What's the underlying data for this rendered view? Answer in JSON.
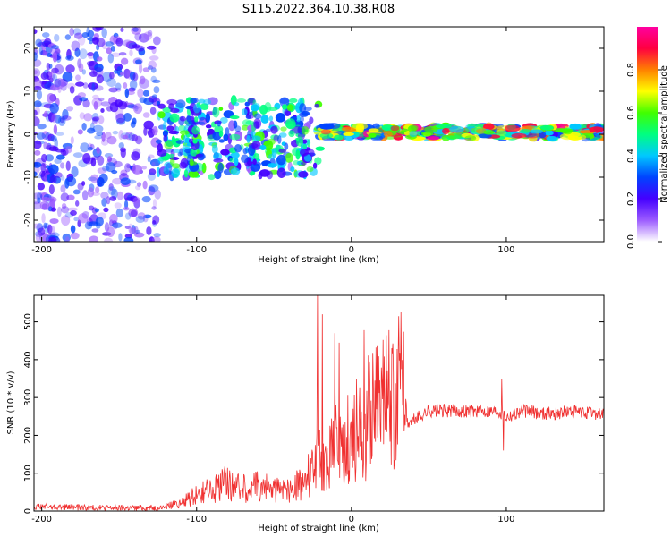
{
  "title": "S115.2022.364.10.38.R08",
  "chart_data": [
    {
      "type": "heatmap",
      "title": "S115.2022.364.10.38.R08",
      "xlabel": "Height of straight line (km)",
      "ylabel": "Frequency (Hz)",
      "xlim": [
        -205,
        163
      ],
      "ylim": [
        -25,
        25
      ],
      "xticks": [
        -200,
        -100,
        0,
        100
      ],
      "yticks": [
        -20,
        -10,
        0,
        10,
        20
      ],
      "colorbar": {
        "label": "Normalized spectral amplitude",
        "range": [
          0,
          1
        ],
        "ticks": [
          0.0,
          0.2,
          0.4,
          0.6,
          0.8
        ],
        "colormap": [
          "#ffffff",
          "#9c5cff",
          "#4400ff",
          "#0044ff",
          "#00c8ff",
          "#00ff80",
          "#40ff00",
          "#ffff00",
          "#ff8000",
          "#ff0040",
          "#ff00a0"
        ]
      },
      "description_regions": [
        {
          "x_range": [
            -205,
            -125
          ],
          "y_range": [
            -25,
            25
          ],
          "amplitude": 0.2
        },
        {
          "x_range": [
            -125,
            -20
          ],
          "y_range": [
            -10,
            8
          ],
          "amplitude": 0.35
        },
        {
          "x_range": [
            -20,
            163
          ],
          "y_range": [
            -1,
            2
          ],
          "amplitude": 0.55
        }
      ]
    },
    {
      "type": "line",
      "xlabel": "Height of straight line (km)",
      "ylabel": "SNR (10 * v/v)",
      "xlim": [
        -205,
        163
      ],
      "ylim": [
        0,
        570
      ],
      "xticks": [
        -200,
        -100,
        0,
        100
      ],
      "yticks": [
        0,
        100,
        200,
        300,
        400,
        500
      ],
      "color": "#f03030",
      "x": [
        -205,
        -180,
        -150,
        -125,
        -110,
        -100,
        -90,
        -80,
        -70,
        -60,
        -50,
        -40,
        -30,
        -25,
        -20,
        -15,
        -10,
        -5,
        0,
        5,
        10,
        15,
        20,
        25,
        30,
        34,
        36,
        40,
        50,
        60,
        70,
        80,
        90,
        95,
        100,
        110,
        120,
        130,
        140,
        150,
        163
      ],
      "y": [
        12,
        10,
        8,
        9,
        25,
        50,
        65,
        90,
        70,
        80,
        65,
        70,
        90,
        140,
        160,
        180,
        200,
        220,
        230,
        260,
        300,
        320,
        340,
        360,
        375,
        380,
        230,
        240,
        265,
        265,
        265,
        265,
        265,
        265,
        250,
        265,
        260,
        258,
        262,
        260,
        258
      ],
      "spikes": [
        {
          "x": -22,
          "y": 570
        },
        {
          "x": -19,
          "y": 520
        },
        {
          "x": -11,
          "y": 470
        },
        {
          "x": -8,
          "y": 445
        },
        {
          "x": 8,
          "y": 478
        },
        {
          "x": 9,
          "y": 80
        },
        {
          "x": 97,
          "y": 350
        },
        {
          "x": 98,
          "y": 160
        }
      ]
    }
  ]
}
